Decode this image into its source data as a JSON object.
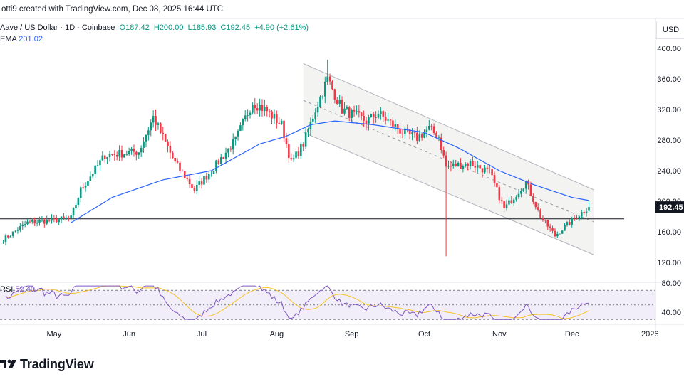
{
  "header": {
    "attribution": "otti9 created with TradingView.com, Dec 08, 2025 16:44 UTC"
  },
  "legend": {
    "symbol": "Aave / US Dollar · 1D · Coinbase",
    "o": "O187.42",
    "h": "H200.00",
    "l": "L185.93",
    "c": "C192.45",
    "change": "+4.90 (+2.61%)",
    "ema_label": "EMA",
    "ema_value": "201.02"
  },
  "rsi_legend": {
    "label": "RSI",
    "value": "52.40"
  },
  "currency": "USD",
  "footer": {
    "brand": "TradingView"
  },
  "colors": {
    "up": "#089981",
    "down": "#f23645",
    "ema": "#2962ff",
    "rsi": "#7e57c2",
    "rsi_ma": "#f7c325",
    "channel_fill": "#f3f4f2",
    "price_tag": "#131722"
  },
  "chart_data": {
    "type": "candlestick",
    "symbol": "Aave / US Dollar",
    "interval": "1D",
    "exchange": "Coinbase",
    "last_price": 192.45,
    "ohlc_last": {
      "open": 187.42,
      "high": 200.0,
      "low": 185.93,
      "close": 192.45
    },
    "y_ticks": [
      120,
      160,
      200,
      240,
      280,
      320,
      360,
      400
    ],
    "y_tick_labels": [
      "120.00",
      "160.00",
      "200.00",
      "240.00",
      "280.00",
      "320.00",
      "360.00",
      "400.00"
    ],
    "x_tick_labels": [
      "May",
      "Jun",
      "Jul",
      "Aug",
      "Sep",
      "Oct",
      "Nov",
      "Dec",
      "2026"
    ],
    "ylim": [
      110,
      415
    ],
    "horizontal_level": 177,
    "channel": {
      "upper": {
        "from": [
          "2025-08-12",
          380
        ],
        "to": [
          "2025-12-10",
          215
        ]
      },
      "mid": {
        "from": [
          "2025-08-12",
          332
        ],
        "to": [
          "2025-12-10",
          173
        ]
      },
      "lower": {
        "from": [
          "2025-08-12",
          290
        ],
        "to": [
          "2025-12-10",
          130
        ]
      }
    },
    "close_keypoints": [
      [
        "2025-04-10",
        150
      ],
      [
        "2025-04-20",
        172
      ],
      [
        "2025-04-30",
        175
      ],
      [
        "2025-05-08",
        178
      ],
      [
        "2025-05-12",
        215
      ],
      [
        "2025-05-22",
        260
      ],
      [
        "2025-06-05",
        265
      ],
      [
        "2025-06-11",
        310
      ],
      [
        "2025-06-20",
        250
      ],
      [
        "2025-06-28",
        215
      ],
      [
        "2025-07-05",
        240
      ],
      [
        "2025-07-15",
        280
      ],
      [
        "2025-07-22",
        330
      ],
      [
        "2025-07-28",
        318
      ],
      [
        "2025-08-03",
        300
      ],
      [
        "2025-08-07",
        250
      ],
      [
        "2025-08-12",
        275
      ],
      [
        "2025-08-17",
        320
      ],
      [
        "2025-08-22",
        360
      ],
      [
        "2025-08-28",
        320
      ],
      [
        "2025-09-07",
        305
      ],
      [
        "2025-09-12",
        315
      ],
      [
        "2025-09-22",
        290
      ],
      [
        "2025-09-28",
        283
      ],
      [
        "2025-10-03",
        295
      ],
      [
        "2025-10-07",
        284
      ],
      [
        "2025-10-10",
        245
      ],
      [
        "2025-10-20",
        250
      ],
      [
        "2025-10-28",
        238
      ],
      [
        "2025-11-03",
        190
      ],
      [
        "2025-11-12",
        225
      ],
      [
        "2025-11-18",
        180
      ],
      [
        "2025-11-24",
        155
      ],
      [
        "2025-12-01",
        175
      ],
      [
        "2025-12-08",
        192.45
      ]
    ],
    "ema_keypoints": [
      [
        "2025-05-08",
        172
      ],
      [
        "2025-05-25",
        205
      ],
      [
        "2025-06-15",
        228
      ],
      [
        "2025-07-05",
        240
      ],
      [
        "2025-07-25",
        275
      ],
      [
        "2025-08-05",
        285
      ],
      [
        "2025-08-15",
        300
      ],
      [
        "2025-08-25",
        305
      ],
      [
        "2025-09-10",
        300
      ],
      [
        "2025-10-01",
        290
      ],
      [
        "2025-10-15",
        270
      ],
      [
        "2025-11-01",
        240
      ],
      [
        "2025-11-15",
        222
      ],
      [
        "2025-12-01",
        205
      ],
      [
        "2025-12-08",
        201.02
      ]
    ],
    "rsi": {
      "ticks": [
        40,
        80
      ],
      "tick_labels": [
        "40.00",
        "80.00"
      ],
      "band": [
        30,
        70
      ],
      "mid": 50,
      "last": 52.4
    }
  }
}
